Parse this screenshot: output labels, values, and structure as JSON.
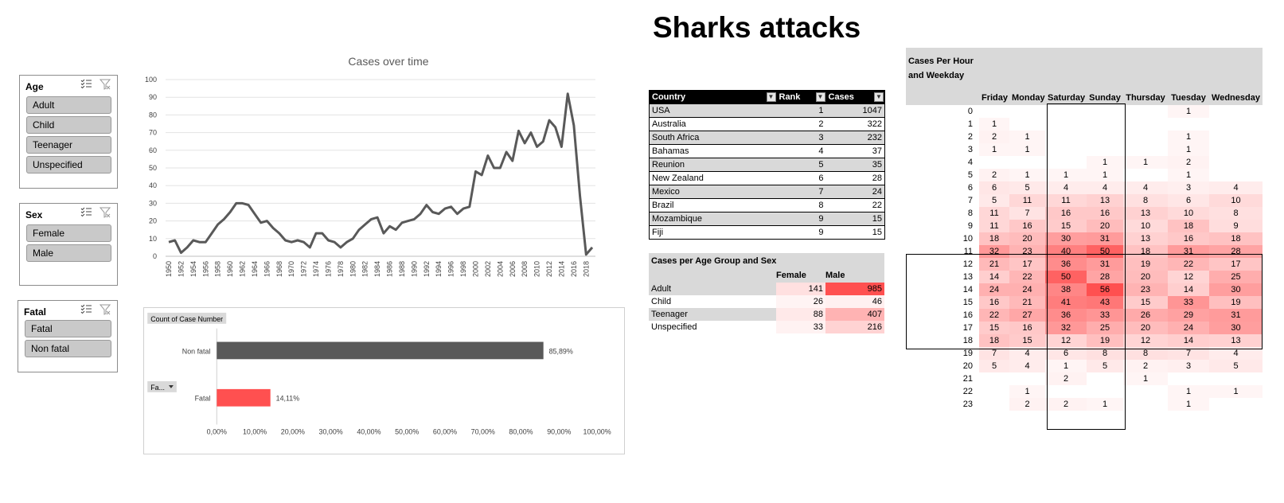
{
  "title": "Sharks attacks",
  "slicers": [
    {
      "header": "Age",
      "items": [
        "Adult",
        "Child",
        "Teenager",
        "Unspecified"
      ]
    },
    {
      "header": "Sex",
      "items": [
        "Female",
        "Male"
      ]
    },
    {
      "header": "Fatal",
      "items": [
        "Fatal",
        "Non fatal"
      ]
    }
  ],
  "chart_data": [
    {
      "type": "line",
      "title": "Cases over time",
      "xlabel": "",
      "ylabel": "",
      "ylim": [
        0,
        100
      ],
      "yticks": [
        "0",
        "10",
        "20",
        "30",
        "40",
        "50",
        "60",
        "70",
        "80",
        "90",
        "100"
      ],
      "xticks": [
        "1950",
        "1952",
        "1954",
        "1956",
        "1958",
        "1960",
        "1962",
        "1964",
        "1966",
        "1968",
        "1970",
        "1972",
        "1974",
        "1976",
        "1978",
        "1980",
        "1982",
        "1984",
        "1986",
        "1988",
        "1990",
        "1992",
        "1994",
        "1996",
        "1998",
        "2000",
        "2002",
        "2004",
        "2006",
        "2008",
        "2010",
        "2012",
        "2014",
        "2016",
        "2018"
      ],
      "x": [
        1950,
        1951,
        1952,
        1953,
        1954,
        1955,
        1956,
        1957,
        1958,
        1959,
        1960,
        1961,
        1962,
        1963,
        1964,
        1965,
        1966,
        1967,
        1968,
        1969,
        1970,
        1971,
        1972,
        1973,
        1974,
        1975,
        1976,
        1977,
        1978,
        1979,
        1980,
        1981,
        1982,
        1983,
        1984,
        1985,
        1986,
        1987,
        1988,
        1989,
        1990,
        1991,
        1992,
        1993,
        1994,
        1995,
        1996,
        1997,
        1998,
        1999,
        2000,
        2001,
        2002,
        2003,
        2004,
        2005,
        2006,
        2007,
        2008,
        2009,
        2010,
        2011,
        2012,
        2013,
        2014,
        2015,
        2016,
        2017,
        2018,
        2019
      ],
      "y": [
        8,
        9,
        2,
        5,
        9,
        8,
        8,
        13,
        18,
        21,
        25,
        30,
        30,
        29,
        24,
        19,
        20,
        16,
        13,
        9,
        8,
        9,
        8,
        5,
        13,
        13,
        9,
        8,
        5,
        8,
        10,
        15,
        18,
        21,
        22,
        13,
        17,
        15,
        19,
        20,
        21,
        24,
        29,
        25,
        24,
        27,
        28,
        24,
        27,
        28,
        48,
        46,
        57,
        50,
        50,
        59,
        54,
        71,
        64,
        70,
        62,
        65,
        77,
        73,
        62,
        92,
        74,
        34,
        1,
        5
      ],
      "color": "#595959",
      "grid": true
    },
    {
      "type": "bar",
      "orientation": "horizontal",
      "field_button": "Count of Case Number",
      "filter_button": "Fa...",
      "categories": [
        "Non fatal",
        "Fatal"
      ],
      "values": [
        85.89,
        14.11
      ],
      "value_labels": [
        "85,89%",
        "14,11%"
      ],
      "colors": [
        "#595959",
        "#ff5050"
      ],
      "xlim": [
        0,
        100
      ],
      "xticks": [
        "0,00%",
        "10,00%",
        "20,00%",
        "30,00%",
        "40,00%",
        "50,00%",
        "60,00%",
        "70,00%",
        "80,00%",
        "90,00%",
        "100,00%"
      ]
    }
  ],
  "country_table": {
    "headers": [
      "Country",
      "Rank",
      "Cases"
    ],
    "rows": [
      [
        "USA",
        "1",
        "1047"
      ],
      [
        "Australia",
        "2",
        "322"
      ],
      [
        "South Africa",
        "3",
        "232"
      ],
      [
        "Bahamas",
        "4",
        "37"
      ],
      [
        "Reunion",
        "5",
        "35"
      ],
      [
        "New Zealand",
        "6",
        "28"
      ],
      [
        "Mexico",
        "7",
        "24"
      ],
      [
        "Brazil",
        "8",
        "22"
      ],
      [
        "Mozambique",
        "9",
        "15"
      ],
      [
        "Fiji",
        "9",
        "15"
      ]
    ]
  },
  "age_sex": {
    "title": "Cases per Age Group and Sex",
    "headers": [
      "Female",
      "Male"
    ],
    "rows": [
      {
        "label": "Adult",
        "female": 141,
        "male": 985
      },
      {
        "label": "Child",
        "female": 26,
        "male": 46
      },
      {
        "label": "Teenager",
        "female": 88,
        "male": 407
      },
      {
        "label": "Unspecified",
        "female": 33,
        "male": 216
      }
    ]
  },
  "heatmap": {
    "title_line1": "Cases Per Hour",
    "title_line2": "and Weekday",
    "days": [
      "Friday",
      "Monday",
      "Saturday",
      "Sunday",
      "Thursday",
      "Tuesday",
      "Wednesday"
    ],
    "hours": [
      "0",
      "1",
      "2",
      "3",
      "4",
      "5",
      "6",
      "7",
      "8",
      "9",
      "10",
      "11",
      "12",
      "13",
      "14",
      "15",
      "16",
      "17",
      "18",
      "19",
      "20",
      "21",
      "22",
      "23"
    ],
    "values": [
      [
        null,
        null,
        null,
        null,
        null,
        1,
        null
      ],
      [
        1,
        null,
        null,
        null,
        null,
        null,
        null
      ],
      [
        2,
        1,
        null,
        null,
        null,
        1,
        null
      ],
      [
        1,
        1,
        null,
        null,
        null,
        1,
        null
      ],
      [
        null,
        null,
        null,
        1,
        1,
        2,
        null
      ],
      [
        2,
        1,
        1,
        1,
        null,
        1,
        null
      ],
      [
        6,
        5,
        4,
        4,
        4,
        3,
        4
      ],
      [
        5,
        11,
        11,
        13,
        8,
        6,
        10
      ],
      [
        11,
        7,
        16,
        16,
        13,
        10,
        8
      ],
      [
        11,
        16,
        15,
        20,
        10,
        18,
        9
      ],
      [
        18,
        20,
        30,
        31,
        13,
        16,
        18
      ],
      [
        32,
        23,
        40,
        50,
        18,
        31,
        28
      ],
      [
        21,
        17,
        36,
        31,
        19,
        22,
        17
      ],
      [
        14,
        22,
        50,
        28,
        20,
        12,
        25
      ],
      [
        24,
        24,
        38,
        56,
        23,
        14,
        30
      ],
      [
        16,
        21,
        41,
        43,
        15,
        33,
        19
      ],
      [
        22,
        27,
        36,
        33,
        26,
        29,
        31
      ],
      [
        15,
        16,
        32,
        25,
        20,
        24,
        30
      ],
      [
        18,
        15,
        12,
        19,
        12,
        14,
        13
      ],
      [
        7,
        4,
        6,
        8,
        8,
        7,
        4
      ],
      [
        5,
        4,
        1,
        5,
        2,
        3,
        5
      ],
      [
        null,
        null,
        2,
        null,
        1,
        null,
        null
      ],
      [
        null,
        1,
        null,
        null,
        null,
        1,
        1
      ],
      [
        null,
        2,
        2,
        1,
        null,
        1,
        null
      ]
    ],
    "max": 56
  }
}
